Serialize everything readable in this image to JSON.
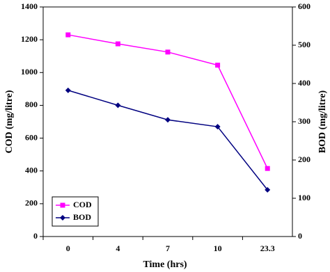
{
  "chart_data": {
    "type": "line",
    "categories": [
      "0",
      "4",
      "7",
      "10",
      "23.3"
    ],
    "series": [
      {
        "name": "COD",
        "color": "#ff00ff",
        "marker": "square",
        "values": [
          1230,
          1175,
          1125,
          1045,
          415
        ]
      },
      {
        "name": "BOD",
        "color": "#000080",
        "marker": "diamond",
        "axis": "y2",
        "values": [
          382,
          343,
          305,
          287,
          122
        ]
      }
    ],
    "xlabel": "Time (hrs)",
    "ylabel": "COD (mg/litre)",
    "y2label": "BOD (mg/litre)",
    "ylim": [
      0,
      1400
    ],
    "yticks": [
      0,
      200,
      400,
      600,
      800,
      1000,
      1200,
      1400
    ],
    "y2lim": [
      0,
      600
    ],
    "y2ticks": [
      0,
      100,
      200,
      300,
      400,
      500,
      600
    ],
    "legend": "lower left"
  }
}
